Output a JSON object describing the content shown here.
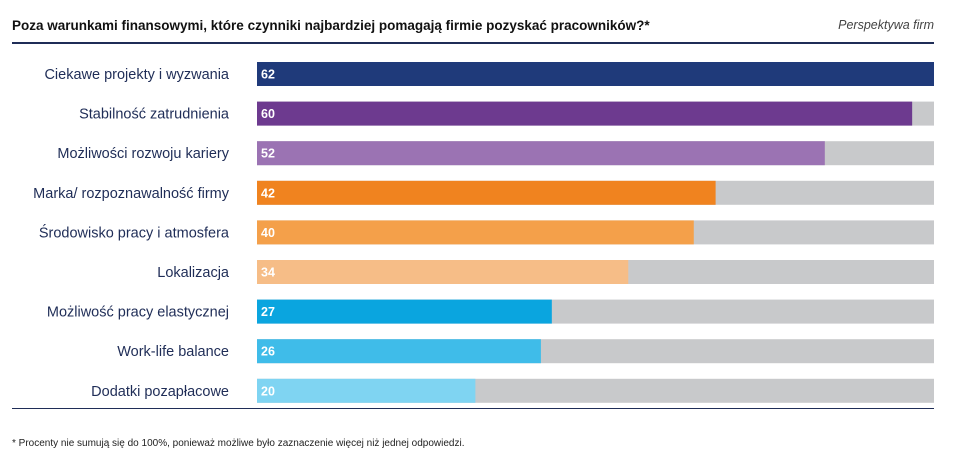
{
  "header": {
    "title": "Poza warunkami finansowymi, które czynniki najbardziej pomagają firmie pozyskać pracowników?*",
    "perspective": "Perspektywa firm"
  },
  "footnote": "* Procenty nie sumują się do 100%, ponieważ możliwe było zaznaczenie więcej niż jednej odpowiedzi.",
  "chart_data": {
    "type": "bar",
    "orientation": "horizontal",
    "categories": [
      "Ciekawe projekty i wyzwania",
      "Stabilność zatrudnienia",
      "Możliwości rozwoju kariery",
      "Marka/ rozpoznawalność firmy",
      "Środowisko pracy i atmosfera",
      "Lokalizacja",
      "Możliwość pracy elastycznej",
      "Work-life balance",
      "Dodatki pozapłacowe"
    ],
    "values": [
      62,
      60,
      52,
      42,
      40,
      34,
      27,
      26,
      20
    ],
    "xlim": [
      0,
      62
    ],
    "colors": [
      "#1f3a7a",
      "#6d3a8f",
      "#9b73b3",
      "#f0831f",
      "#f4a04a",
      "#f6bd87",
      "#0aa5df",
      "#3fbce9",
      "#7fd4f2"
    ],
    "track_color": "#c8c9cb"
  }
}
